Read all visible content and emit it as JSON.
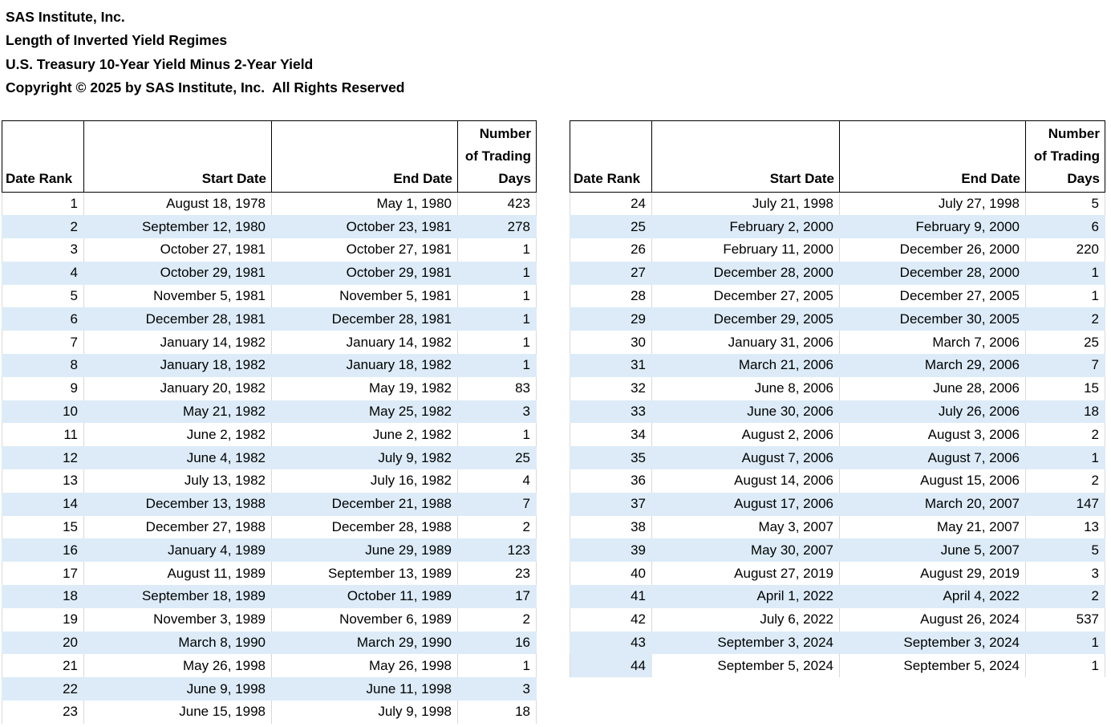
{
  "title_block": {
    "lines": [
      "SAS Institute, Inc.",
      "Length of Inverted Yield Regimes",
      "U.S. Treasury 10-Year Yield Minus 2-Year Yield",
      "Copyright © 2025 by SAS Institute, Inc.  All Rights Reserved"
    ]
  },
  "columns": {
    "rank": "Date Rank",
    "start": "Start Date",
    "end": "End Date",
    "days_lines": [
      "Number",
      "of Trading",
      "Days"
    ]
  },
  "colors": {
    "row_band": "#dcebf7",
    "gridline": "#d9d9d9",
    "header_border": "#000000",
    "text": "#000000",
    "background": "#ffffff"
  },
  "chart_data": {
    "type": "table",
    "title": "Length of Inverted Yield Regimes",
    "subtitle": "U.S. Treasury 10-Year Yield Minus 2-Year Yield",
    "columns": [
      "Date Rank",
      "Start Date",
      "End Date",
      "Number of Trading Days"
    ],
    "layout": {
      "split": "ranks 1-23 in left table, ranks 24-44 in right table",
      "banding": "alternating light-blue stripe on every second row of each table",
      "grid": "light gray vertical cell separators on unbanded rows, black-bordered header"
    },
    "rows": [
      [
        1,
        "August 18, 1978",
        "May 1, 1980",
        423
      ],
      [
        2,
        "September 12, 1980",
        "October 23, 1981",
        278
      ],
      [
        3,
        "October 27, 1981",
        "October 27, 1981",
        1
      ],
      [
        4,
        "October 29, 1981",
        "October 29, 1981",
        1
      ],
      [
        5,
        "November 5, 1981",
        "November 5, 1981",
        1
      ],
      [
        6,
        "December 28, 1981",
        "December 28, 1981",
        1
      ],
      [
        7,
        "January 14, 1982",
        "January 14, 1982",
        1
      ],
      [
        8,
        "January 18, 1982",
        "January 18, 1982",
        1
      ],
      [
        9,
        "January 20, 1982",
        "May 19, 1982",
        83
      ],
      [
        10,
        "May 21, 1982",
        "May 25, 1982",
        3
      ],
      [
        11,
        "June 2, 1982",
        "June 2, 1982",
        1
      ],
      [
        12,
        "June 4, 1982",
        "July 9, 1982",
        25
      ],
      [
        13,
        "July 13, 1982",
        "July 16, 1982",
        4
      ],
      [
        14,
        "December 13, 1988",
        "December 21, 1988",
        7
      ],
      [
        15,
        "December 27, 1988",
        "December 28, 1988",
        2
      ],
      [
        16,
        "January 4, 1989",
        "June 29, 1989",
        123
      ],
      [
        17,
        "August 11, 1989",
        "September 13, 1989",
        23
      ],
      [
        18,
        "September 18, 1989",
        "October 11, 1989",
        17
      ],
      [
        19,
        "November 3, 1989",
        "November 6, 1989",
        2
      ],
      [
        20,
        "March 8, 1990",
        "March 29, 1990",
        16
      ],
      [
        21,
        "May 26, 1998",
        "May 26, 1998",
        1
      ],
      [
        22,
        "June 9, 1998",
        "June 11, 1998",
        3
      ],
      [
        23,
        "June 15, 1998",
        "July 9, 1998",
        18
      ],
      [
        24,
        "July 21, 1998",
        "July 27, 1998",
        5
      ],
      [
        25,
        "February 2, 2000",
        "February 9, 2000",
        6
      ],
      [
        26,
        "February 11, 2000",
        "December 26, 2000",
        220
      ],
      [
        27,
        "December 28, 2000",
        "December 28, 2000",
        1
      ],
      [
        28,
        "December 27, 2005",
        "December 27, 2005",
        1
      ],
      [
        29,
        "December 29, 2005",
        "December 30, 2005",
        2
      ],
      [
        30,
        "January 31, 2006",
        "March 7, 2006",
        25
      ],
      [
        31,
        "March 21, 2006",
        "March 29, 2006",
        7
      ],
      [
        32,
        "June 8, 2006",
        "June 28, 2006",
        15
      ],
      [
        33,
        "June 30, 2006",
        "July 26, 2006",
        18
      ],
      [
        34,
        "August 2, 2006",
        "August 3, 2006",
        2
      ],
      [
        35,
        "August 7, 2006",
        "August 7, 2006",
        1
      ],
      [
        36,
        "August 14, 2006",
        "August 15, 2006",
        2
      ],
      [
        37,
        "August 17, 2006",
        "March 20, 2007",
        147
      ],
      [
        38,
        "May 3, 2007",
        "May 21, 2007",
        13
      ],
      [
        39,
        "May 30, 2007",
        "June 5, 2007",
        5
      ],
      [
        40,
        "August 27, 2019",
        "August 29, 2019",
        3
      ],
      [
        41,
        "April 1, 2022",
        "April 4, 2022",
        2
      ],
      [
        42,
        "July 6, 2022",
        "August 26, 2024",
        537
      ],
      [
        43,
        "September 3, 2024",
        "September 3, 2024",
        1
      ],
      [
        44,
        "September 5, 2024",
        "September 5, 2024",
        1
      ]
    ]
  }
}
